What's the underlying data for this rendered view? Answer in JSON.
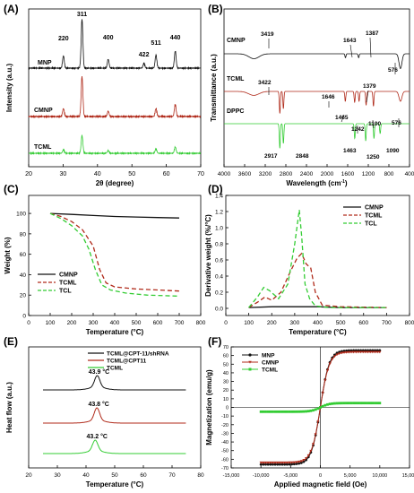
{
  "panels": {
    "A": {
      "label": "(A)"
    },
    "B": {
      "label": "(B)"
    },
    "C": {
      "label": "(C)"
    },
    "D": {
      "label": "(D)"
    },
    "E": {
      "label": "(E)"
    },
    "F": {
      "label": "(F)"
    }
  },
  "colors": {
    "black": "#111111",
    "red": "#b02a1a",
    "green": "#33cc33"
  },
  "chart_data": [
    {
      "id": "A",
      "type": "line",
      "xlabel": "2θ (degree)",
      "ylabel": "Intensity (a.u.)",
      "xlim": [
        20,
        70
      ],
      "xticks": [
        20,
        30,
        40,
        50,
        60,
        70
      ],
      "series": [
        {
          "name": "MNP",
          "peaks": [
            [
              30.1,
              25
            ],
            [
              35.5,
              100
            ],
            [
              43.1,
              18
            ],
            [
              53.5,
              10
            ],
            [
              57.0,
              27
            ],
            [
              62.6,
              35
            ]
          ],
          "baseline": 0.0
        },
        {
          "name": "CMNP",
          "peaks": [
            [
              30.1,
              12
            ],
            [
              35.5,
              60
            ],
            [
              43.1,
              8
            ],
            [
              57.0,
              12
            ],
            [
              62.6,
              18
            ]
          ],
          "baseline": 0.0
        },
        {
          "name": "TCML",
          "peaks": [
            [
              30.1,
              8
            ],
            [
              35.5,
              40
            ],
            [
              43.1,
              6
            ],
            [
              57.0,
              10
            ],
            [
              62.6,
              14
            ]
          ],
          "baseline": 0.0
        }
      ],
      "peak_labels": [
        {
          "text": "220",
          "x": 30.1
        },
        {
          "text": "311",
          "x": 35.5
        },
        {
          "text": "400",
          "x": 43.1
        },
        {
          "text": "422",
          "x": 53.5
        },
        {
          "text": "511",
          "x": 57.0
        },
        {
          "text": "440",
          "x": 62.6
        }
      ]
    },
    {
      "id": "B",
      "type": "line",
      "xlabel": "Wavelength (cm",
      "xlabel_sup": "-1",
      "xlabel_end": ")",
      "ylabel": "Transmittance (a.u.)",
      "xlim": [
        4000,
        400
      ],
      "xticks": [
        4000,
        3600,
        3200,
        2800,
        2400,
        2000,
        1600,
        1200,
        800,
        400
      ],
      "series": [
        {
          "name": "CMNP",
          "dips": [
            [
              3419,
              10
            ],
            [
              1643,
              8
            ],
            [
              1387,
              8
            ],
            [
              576,
              30
            ]
          ]
        },
        {
          "name": "TCML",
          "dips": [
            [
              3422,
              8
            ],
            [
              2917,
              45
            ],
            [
              2848,
              35
            ],
            [
              1646,
              20
            ],
            [
              1465,
              22
            ],
            [
              1379,
              20
            ],
            [
              1242,
              28
            ],
            [
              1100,
              30
            ],
            [
              576,
              20
            ]
          ]
        },
        {
          "name": "DPPC",
          "dips": [
            [
              2917,
              50
            ],
            [
              2848,
              40
            ],
            [
              1463,
              30
            ],
            [
              1250,
              35
            ],
            [
              1090,
              30
            ],
            [
              970,
              20
            ]
          ]
        }
      ],
      "annotations": [
        {
          "text": "3419",
          "series": "CMNP"
        },
        {
          "text": "1643",
          "series": "CMNP"
        },
        {
          "text": "1387",
          "series": "CMNP"
        },
        {
          "text": "576",
          "series": "CMNP"
        },
        {
          "text": "3422",
          "series": "TCML"
        },
        {
          "text": "1646",
          "series": "TCML"
        },
        {
          "text": "1379",
          "series": "TCML"
        },
        {
          "text": "1465",
          "series": "TCML"
        },
        {
          "text": "1242",
          "series": "TCML"
        },
        {
          "text": "1100",
          "series": "TCML"
        },
        {
          "text": "576",
          "series": "TCML"
        },
        {
          "text": "2917",
          "series": "DPPC"
        },
        {
          "text": "2848",
          "series": "DPPC"
        },
        {
          "text": "1463",
          "series": "DPPC"
        },
        {
          "text": "1250",
          "series": "DPPC"
        },
        {
          "text": "1090",
          "series": "DPPC"
        }
      ]
    },
    {
      "id": "C",
      "type": "line",
      "xlabel": "Temperature (°C)",
      "ylabel": "Weight (%)",
      "xlim": [
        0,
        800
      ],
      "ylim": [
        0,
        100
      ],
      "xticks": [
        0,
        100,
        200,
        300,
        400,
        500,
        600,
        700,
        800
      ],
      "yticks": [
        0,
        20,
        40,
        60,
        80,
        100
      ],
      "legend": "bottom-left",
      "series": [
        {
          "name": "CMNP",
          "style": "solid",
          "x": [
            100,
            200,
            300,
            400,
            500,
            600,
            700
          ],
          "y": [
            100,
            99,
            98,
            97,
            96.5,
            96,
            95.5
          ]
        },
        {
          "name": "TCML",
          "style": "dash",
          "x": [
            100,
            150,
            200,
            250,
            300,
            330,
            360,
            400,
            500,
            600,
            700
          ],
          "y": [
            100,
            97,
            92,
            84,
            68,
            45,
            32,
            28,
            26,
            25,
            24
          ]
        },
        {
          "name": "TCL",
          "style": "dash",
          "x": [
            100,
            150,
            200,
            250,
            280,
            310,
            340,
            380,
            450,
            550,
            700
          ],
          "y": [
            100,
            95,
            88,
            78,
            65,
            45,
            30,
            25,
            22,
            20,
            19
          ]
        }
      ]
    },
    {
      "id": "D",
      "type": "line",
      "xlabel": "Temperature (°C)",
      "ylabel": "Derivative weight (%/°C)",
      "xlim": [
        0,
        800
      ],
      "ylim": [
        0,
        1.4
      ],
      "xticks": [
        0,
        100,
        200,
        300,
        400,
        500,
        600,
        700,
        800
      ],
      "yticks": [
        0.0,
        0.2,
        0.4,
        0.6,
        0.8,
        1.0,
        1.2,
        1.4
      ],
      "legend": "top-right",
      "series": [
        {
          "name": "CMNP",
          "style": "solid",
          "x": [
            100,
            200,
            300,
            400,
            500,
            600,
            700
          ],
          "y": [
            0.01,
            0.02,
            0.02,
            0.02,
            0.01,
            0.01,
            0.01
          ]
        },
        {
          "name": "TCML",
          "style": "dash",
          "x": [
            100,
            140,
            170,
            200,
            240,
            280,
            310,
            330,
            350,
            370,
            390,
            420,
            500,
            700
          ],
          "y": [
            0.01,
            0.08,
            0.14,
            0.1,
            0.2,
            0.45,
            0.62,
            0.68,
            0.55,
            0.5,
            0.2,
            0.04,
            0.02,
            0.01
          ]
        },
        {
          "name": "TCL",
          "style": "dash",
          "x": [
            100,
            140,
            165,
            190,
            230,
            270,
            300,
            320,
            330,
            345,
            365,
            390,
            450,
            700
          ],
          "y": [
            0.01,
            0.15,
            0.26,
            0.22,
            0.12,
            0.3,
            0.8,
            1.22,
            0.9,
            0.3,
            0.12,
            0.03,
            0.01,
            0.01
          ]
        }
      ]
    },
    {
      "id": "E",
      "type": "line",
      "xlabel": "Temperature (°C)",
      "ylabel": "Heat flow (a.u.)",
      "xlim": [
        20,
        80
      ],
      "xticks": [
        20,
        30,
        40,
        50,
        60,
        70,
        80
      ],
      "series": [
        {
          "name": "TCML@CPT-11/shRNA",
          "peak": 43.9,
          "label": "43.9 °C"
        },
        {
          "name": "TCML@CPT11",
          "peak": 43.8,
          "label": "43.8 °C"
        },
        {
          "name": "TCML",
          "peak": 43.2,
          "label": "43.2 °C"
        }
      ]
    },
    {
      "id": "F",
      "type": "line",
      "xlabel": "Applied magnetic field (Oe)",
      "ylabel": "Magnetization (emu/g)",
      "xlim": [
        -15000,
        15000
      ],
      "ylim": [
        -70,
        70
      ],
      "xticks": [
        -15000,
        -10000,
        -5000,
        0,
        5000,
        10000,
        15000
      ],
      "xtick_labels": [
        "-15,000",
        "-10,000",
        "-5,000",
        "0",
        "5,000",
        "10,000",
        "15,000"
      ],
      "yticks": [
        -70,
        -60,
        -50,
        -40,
        -30,
        -20,
        -10,
        0,
        10,
        20,
        30,
        40,
        50,
        60,
        70
      ],
      "legend": "top-left",
      "series": [
        {
          "name": "MNP",
          "ms": 66
        },
        {
          "name": "CMNP",
          "ms": 64
        },
        {
          "name": "TCML",
          "ms": 5
        }
      ]
    }
  ]
}
